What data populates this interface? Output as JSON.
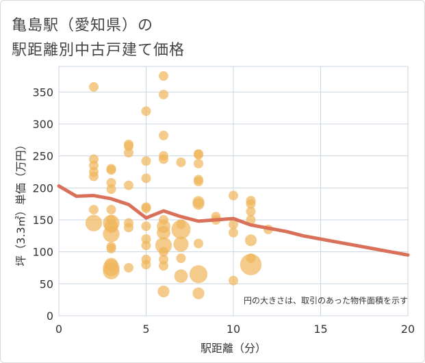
{
  "chart_data": {
    "type": "scatter",
    "title": [
      "亀島駅（愛知県）の",
      "駅距離別中古戸建て価格"
    ],
    "xlabel": "駅距離（分）",
    "ylabel": "坪（3.3㎡）単価（万円）",
    "xlim": [
      0,
      20
    ],
    "ylim": [
      0,
      390
    ],
    "x_ticks": [
      0,
      5,
      10,
      15,
      20
    ],
    "y_ticks": [
      0,
      50,
      100,
      150,
      200,
      250,
      300,
      350
    ],
    "grid": true,
    "annotation": "円の大きさは、取引のあった物件面積を示す",
    "colors": {
      "bubble": "#f0b55a",
      "line": "#d9705a",
      "grid": "#c8d4df"
    },
    "points": [
      {
        "x": 2,
        "y": 358,
        "s": 1
      },
      {
        "x": 2,
        "y": 245,
        "s": 1
      },
      {
        "x": 2,
        "y": 235,
        "s": 1
      },
      {
        "x": 2,
        "y": 225,
        "s": 1
      },
      {
        "x": 2,
        "y": 218,
        "s": 1
      },
      {
        "x": 2,
        "y": 166,
        "s": 1
      },
      {
        "x": 2,
        "y": 145,
        "s": 3
      },
      {
        "x": 3,
        "y": 230,
        "s": 1
      },
      {
        "x": 3,
        "y": 228,
        "s": 1
      },
      {
        "x": 3,
        "y": 208,
        "s": 1
      },
      {
        "x": 3,
        "y": 198,
        "s": 1
      },
      {
        "x": 3,
        "y": 166,
        "s": 1
      },
      {
        "x": 3,
        "y": 150,
        "s": 1
      },
      {
        "x": 3,
        "y": 145,
        "s": 3
      },
      {
        "x": 3,
        "y": 140,
        "s": 2
      },
      {
        "x": 3,
        "y": 128,
        "s": 3
      },
      {
        "x": 3,
        "y": 108,
        "s": 1
      },
      {
        "x": 3,
        "y": 105,
        "s": 1
      },
      {
        "x": 3,
        "y": 80,
        "s": 2
      },
      {
        "x": 3,
        "y": 75,
        "s": 3
      },
      {
        "x": 3,
        "y": 70,
        "s": 3
      },
      {
        "x": 4,
        "y": 268,
        "s": 1
      },
      {
        "x": 4,
        "y": 265,
        "s": 1
      },
      {
        "x": 4,
        "y": 255,
        "s": 1
      },
      {
        "x": 4,
        "y": 204,
        "s": 1
      },
      {
        "x": 4,
        "y": 145,
        "s": 1
      },
      {
        "x": 4,
        "y": 138,
        "s": 1
      },
      {
        "x": 4,
        "y": 75,
        "s": 1
      },
      {
        "x": 5,
        "y": 320,
        "s": 1
      },
      {
        "x": 5,
        "y": 242,
        "s": 1
      },
      {
        "x": 5,
        "y": 215,
        "s": 1
      },
      {
        "x": 5,
        "y": 170,
        "s": 1
      },
      {
        "x": 5,
        "y": 168,
        "s": 1
      },
      {
        "x": 5,
        "y": 140,
        "s": 1
      },
      {
        "x": 5,
        "y": 120,
        "s": 1
      },
      {
        "x": 5,
        "y": 110,
        "s": 1
      },
      {
        "x": 5,
        "y": 88,
        "s": 1
      },
      {
        "x": 5,
        "y": 80,
        "s": 1
      },
      {
        "x": 6,
        "y": 375,
        "s": 1
      },
      {
        "x": 6,
        "y": 346,
        "s": 1
      },
      {
        "x": 6,
        "y": 282,
        "s": 1
      },
      {
        "x": 6,
        "y": 250,
        "s": 1
      },
      {
        "x": 6,
        "y": 245,
        "s": 1
      },
      {
        "x": 6,
        "y": 150,
        "s": 1
      },
      {
        "x": 6,
        "y": 140,
        "s": 2
      },
      {
        "x": 6,
        "y": 130,
        "s": 2
      },
      {
        "x": 6,
        "y": 110,
        "s": 3
      },
      {
        "x": 6,
        "y": 100,
        "s": 1
      },
      {
        "x": 6,
        "y": 88,
        "s": 1
      },
      {
        "x": 6,
        "y": 78,
        "s": 1
      },
      {
        "x": 6,
        "y": 38,
        "s": 1.5
      },
      {
        "x": 7,
        "y": 240,
        "s": 1
      },
      {
        "x": 7,
        "y": 143,
        "s": 1
      },
      {
        "x": 7,
        "y": 135,
        "s": 4
      },
      {
        "x": 7,
        "y": 112,
        "s": 2.5
      },
      {
        "x": 7,
        "y": 90,
        "s": 1
      },
      {
        "x": 7,
        "y": 62,
        "s": 2
      },
      {
        "x": 8,
        "y": 253,
        "s": 1
      },
      {
        "x": 8,
        "y": 252,
        "s": 1
      },
      {
        "x": 8,
        "y": 238,
        "s": 1
      },
      {
        "x": 8,
        "y": 213,
        "s": 1
      },
      {
        "x": 8,
        "y": 210,
        "s": 1
      },
      {
        "x": 8,
        "y": 178,
        "s": 1.5
      },
      {
        "x": 8,
        "y": 175,
        "s": 1.5
      },
      {
        "x": 8,
        "y": 113,
        "s": 1
      },
      {
        "x": 8,
        "y": 65,
        "s": 3.5
      },
      {
        "x": 8,
        "y": 35,
        "s": 1.5
      },
      {
        "x": 9,
        "y": 155,
        "s": 1
      },
      {
        "x": 9,
        "y": 150,
        "s": 1
      },
      {
        "x": 10,
        "y": 188,
        "s": 1
      },
      {
        "x": 10,
        "y": 143,
        "s": 1
      },
      {
        "x": 10,
        "y": 130,
        "s": 1
      },
      {
        "x": 10,
        "y": 55,
        "s": 1
      },
      {
        "x": 11,
        "y": 180,
        "s": 1
      },
      {
        "x": 11,
        "y": 175,
        "s": 1
      },
      {
        "x": 11,
        "y": 163,
        "s": 1
      },
      {
        "x": 11,
        "y": 150,
        "s": 1
      },
      {
        "x": 11,
        "y": 118,
        "s": 1.5
      },
      {
        "x": 11,
        "y": 90,
        "s": 1
      },
      {
        "x": 11,
        "y": 80,
        "s": 5
      },
      {
        "x": 12,
        "y": 135,
        "s": 1
      }
    ],
    "series": [
      {
        "x": [
          0,
          1,
          2,
          3,
          4,
          5,
          6,
          7,
          8,
          9,
          10,
          11,
          12,
          13,
          14,
          15,
          16,
          17,
          18,
          19,
          20
        ],
        "values": [
          203,
          187,
          188,
          183,
          174,
          153,
          164,
          155,
          148,
          150,
          152,
          142,
          137,
          132,
          125,
          120,
          115,
          110,
          105,
          100,
          95
        ]
      }
    ]
  }
}
